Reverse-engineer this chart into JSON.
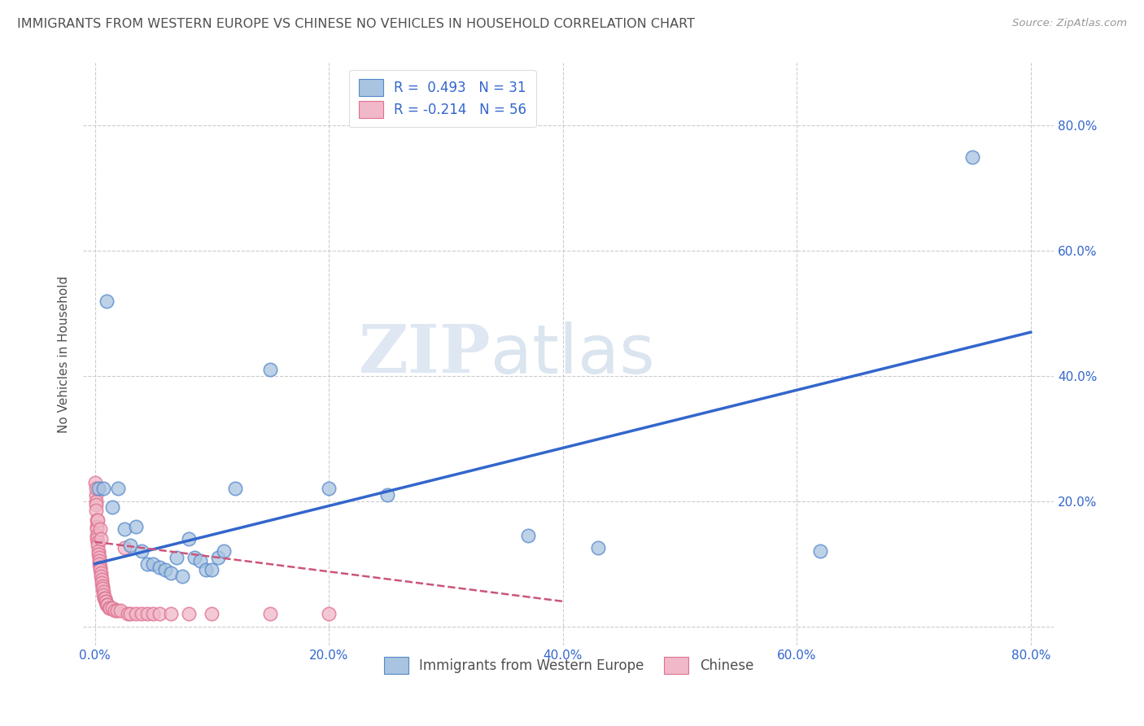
{
  "title": "IMMIGRANTS FROM WESTERN EUROPE VS CHINESE NO VEHICLES IN HOUSEHOLD CORRELATION CHART",
  "source": "Source: ZipAtlas.com",
  "blue_R": 0.493,
  "blue_N": 31,
  "pink_R": -0.214,
  "pink_N": 56,
  "blue_label": "Immigrants from Western Europe",
  "pink_label": "Chinese",
  "blue_color": "#a8c4e0",
  "pink_color": "#f0b8c8",
  "blue_edge_color": "#5588cc",
  "pink_edge_color": "#e07090",
  "blue_line_color": "#3366cc",
  "pink_line_color": "#cc5577",
  "watermark_zip": "ZIP",
  "watermark_atlas": "atlas",
  "blue_dots": [
    [
      0.3,
      22.0
    ],
    [
      0.7,
      22.0
    ],
    [
      1.0,
      52.0
    ],
    [
      1.5,
      19.0
    ],
    [
      2.0,
      22.0
    ],
    [
      2.5,
      15.5
    ],
    [
      3.0,
      13.0
    ],
    [
      3.5,
      16.0
    ],
    [
      4.0,
      12.0
    ],
    [
      4.5,
      10.0
    ],
    [
      5.0,
      10.0
    ],
    [
      5.5,
      9.5
    ],
    [
      6.0,
      9.0
    ],
    [
      6.5,
      8.5
    ],
    [
      7.0,
      11.0
    ],
    [
      7.5,
      8.0
    ],
    [
      8.0,
      14.0
    ],
    [
      8.5,
      11.0
    ],
    [
      9.0,
      10.5
    ],
    [
      9.5,
      9.0
    ],
    [
      10.0,
      9.0
    ],
    [
      10.5,
      11.0
    ],
    [
      11.0,
      12.0
    ],
    [
      12.0,
      22.0
    ],
    [
      15.0,
      41.0
    ],
    [
      20.0,
      22.0
    ],
    [
      25.0,
      21.0
    ],
    [
      37.0,
      14.5
    ],
    [
      43.0,
      12.5
    ],
    [
      62.0,
      12.0
    ],
    [
      75.0,
      75.0
    ]
  ],
  "pink_dots": [
    [
      0.05,
      23.0
    ],
    [
      0.07,
      21.0
    ],
    [
      0.08,
      20.0
    ],
    [
      0.1,
      19.5
    ],
    [
      0.12,
      18.5
    ],
    [
      0.13,
      22.0
    ],
    [
      0.14,
      17.0
    ],
    [
      0.15,
      16.0
    ],
    [
      0.17,
      15.5
    ],
    [
      0.18,
      14.5
    ],
    [
      0.2,
      14.0
    ],
    [
      0.22,
      13.5
    ],
    [
      0.25,
      13.0
    ],
    [
      0.27,
      17.0
    ],
    [
      0.3,
      12.0
    ],
    [
      0.32,
      11.5
    ],
    [
      0.35,
      11.0
    ],
    [
      0.38,
      10.5
    ],
    [
      0.4,
      10.0
    ],
    [
      0.42,
      15.5
    ],
    [
      0.45,
      9.5
    ],
    [
      0.47,
      9.0
    ],
    [
      0.5,
      8.5
    ],
    [
      0.52,
      8.0
    ],
    [
      0.55,
      14.0
    ],
    [
      0.57,
      7.5
    ],
    [
      0.6,
      7.0
    ],
    [
      0.62,
      6.5
    ],
    [
      0.65,
      6.0
    ],
    [
      0.7,
      5.5
    ],
    [
      0.75,
      5.0
    ],
    [
      0.8,
      4.5
    ],
    [
      0.85,
      4.5
    ],
    [
      0.9,
      4.0
    ],
    [
      0.95,
      4.0
    ],
    [
      1.0,
      3.5
    ],
    [
      1.1,
      3.5
    ],
    [
      1.2,
      3.0
    ],
    [
      1.3,
      3.0
    ],
    [
      1.5,
      3.0
    ],
    [
      1.7,
      2.5
    ],
    [
      1.9,
      2.5
    ],
    [
      2.2,
      2.5
    ],
    [
      2.5,
      12.5
    ],
    [
      2.8,
      2.0
    ],
    [
      3.0,
      2.0
    ],
    [
      3.5,
      2.0
    ],
    [
      4.0,
      2.0
    ],
    [
      4.5,
      2.0
    ],
    [
      5.0,
      2.0
    ],
    [
      5.5,
      2.0
    ],
    [
      6.5,
      2.0
    ],
    [
      8.0,
      2.0
    ],
    [
      10.0,
      2.0
    ],
    [
      15.0,
      2.0
    ],
    [
      20.0,
      2.0
    ]
  ],
  "blue_trendline": [
    [
      0,
      10.0
    ],
    [
      80,
      47.0
    ]
  ],
  "pink_trendline": [
    [
      0,
      13.5
    ],
    [
      40,
      4.0
    ]
  ],
  "xlim": [
    -1,
    82
  ],
  "ylim": [
    -3,
    90
  ],
  "xticks": [
    0,
    20,
    40,
    60,
    80
  ],
  "yticks": [
    0,
    20,
    40,
    60,
    80
  ],
  "grid_color": "#cccccc",
  "background_color": "#ffffff",
  "tick_color": "#3366cc",
  "title_color": "#505050",
  "ylabel_text": "No Vehicles in Household",
  "legend_label_color": "#3366cc"
}
